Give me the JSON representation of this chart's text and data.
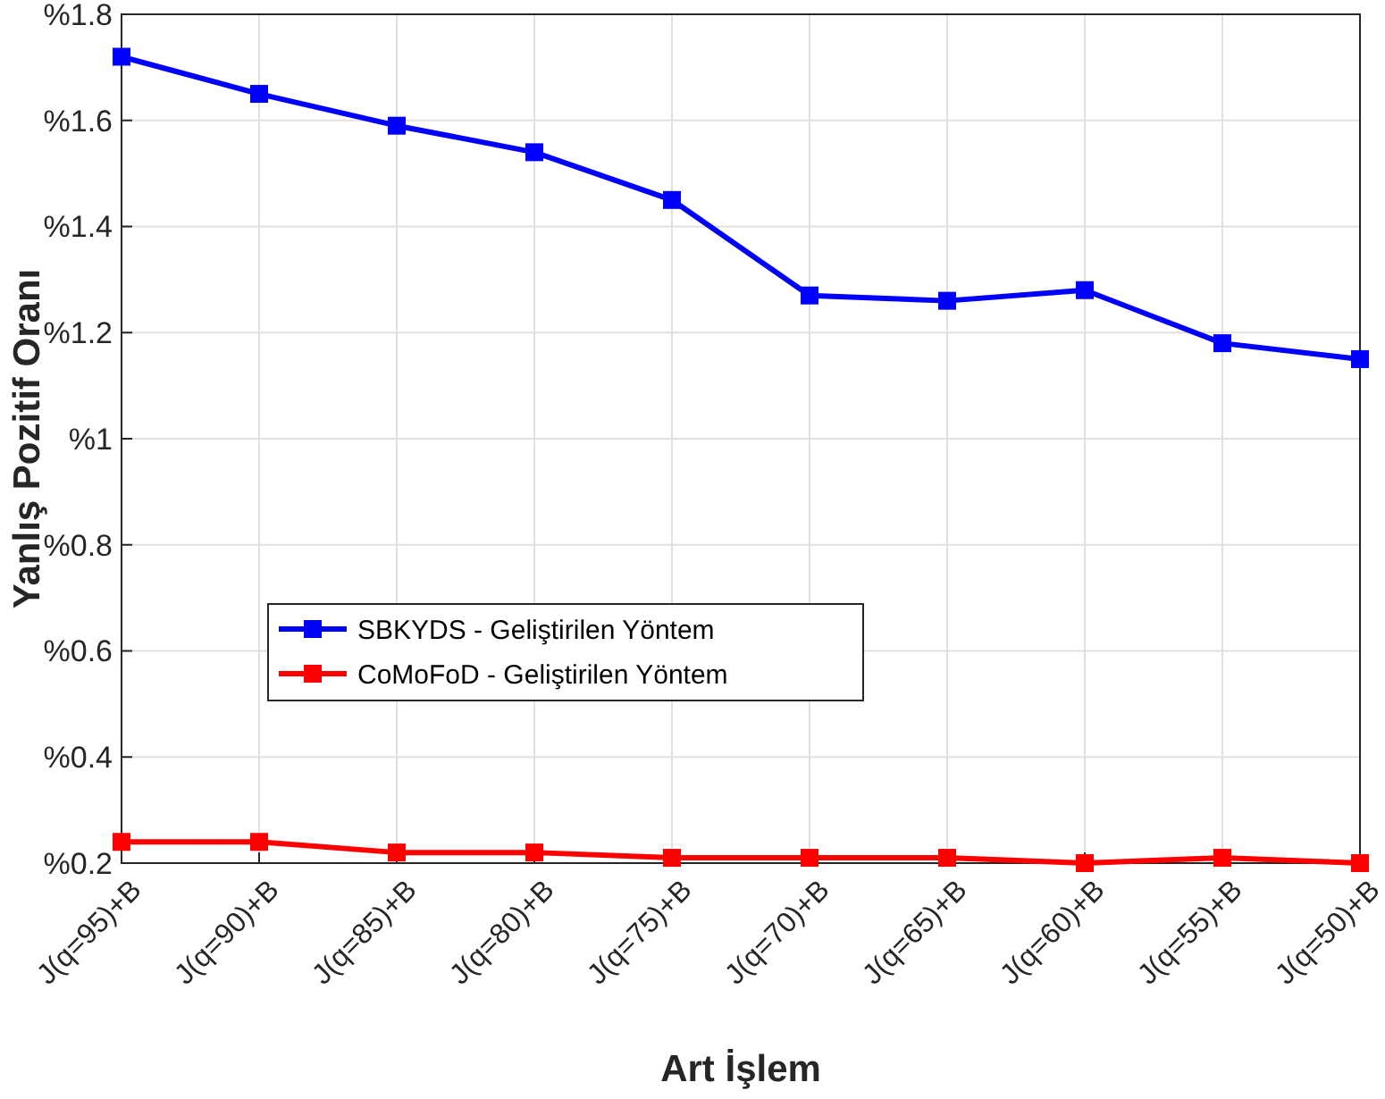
{
  "chart_data": {
    "type": "line",
    "xlabel": "Art İşlem",
    "ylabel": "Yanlış Pozitif Oranı",
    "categories": [
      "J(q=95)+B",
      "J(q=90)+B",
      "J(q=85)+B",
      "J(q=80)+B",
      "J(q=75)+B",
      "J(q=70)+B",
      "J(q=65)+B",
      "J(q=60)+B",
      "J(q=55)+B",
      "J(q=50)+B"
    ],
    "series": [
      {
        "name": "SBKYDS - Geliştirilen Yöntem",
        "color": "#0000ff",
        "values": [
          1.72,
          1.65,
          1.59,
          1.54,
          1.45,
          1.27,
          1.26,
          1.28,
          1.18,
          1.15
        ]
      },
      {
        "name": "CoMoFoD - Geliştirilen Yöntem",
        "color": "#ff0000",
        "values": [
          0.24,
          0.24,
          0.22,
          0.22,
          0.21,
          0.21,
          0.21,
          0.2,
          0.21,
          0.2
        ]
      }
    ],
    "ylim": [
      0.2,
      1.8
    ],
    "yticks": [
      {
        "value": 0.2,
        "label": "%0.2"
      },
      {
        "value": 0.4,
        "label": "%0.4"
      },
      {
        "value": 0.6,
        "label": "%0.6"
      },
      {
        "value": 0.8,
        "label": "%0.8"
      },
      {
        "value": 1,
        "label": "%1"
      },
      {
        "value": 1.2,
        "label": "%1.2"
      },
      {
        "value": 1.4,
        "label": "%1.4"
      },
      {
        "value": 1.6,
        "label": "%1.6"
      },
      {
        "value": 1.8,
        "label": "%1.8"
      }
    ],
    "grid": true,
    "legend": "center",
    "marker": "square",
    "line_style": "solid"
  }
}
